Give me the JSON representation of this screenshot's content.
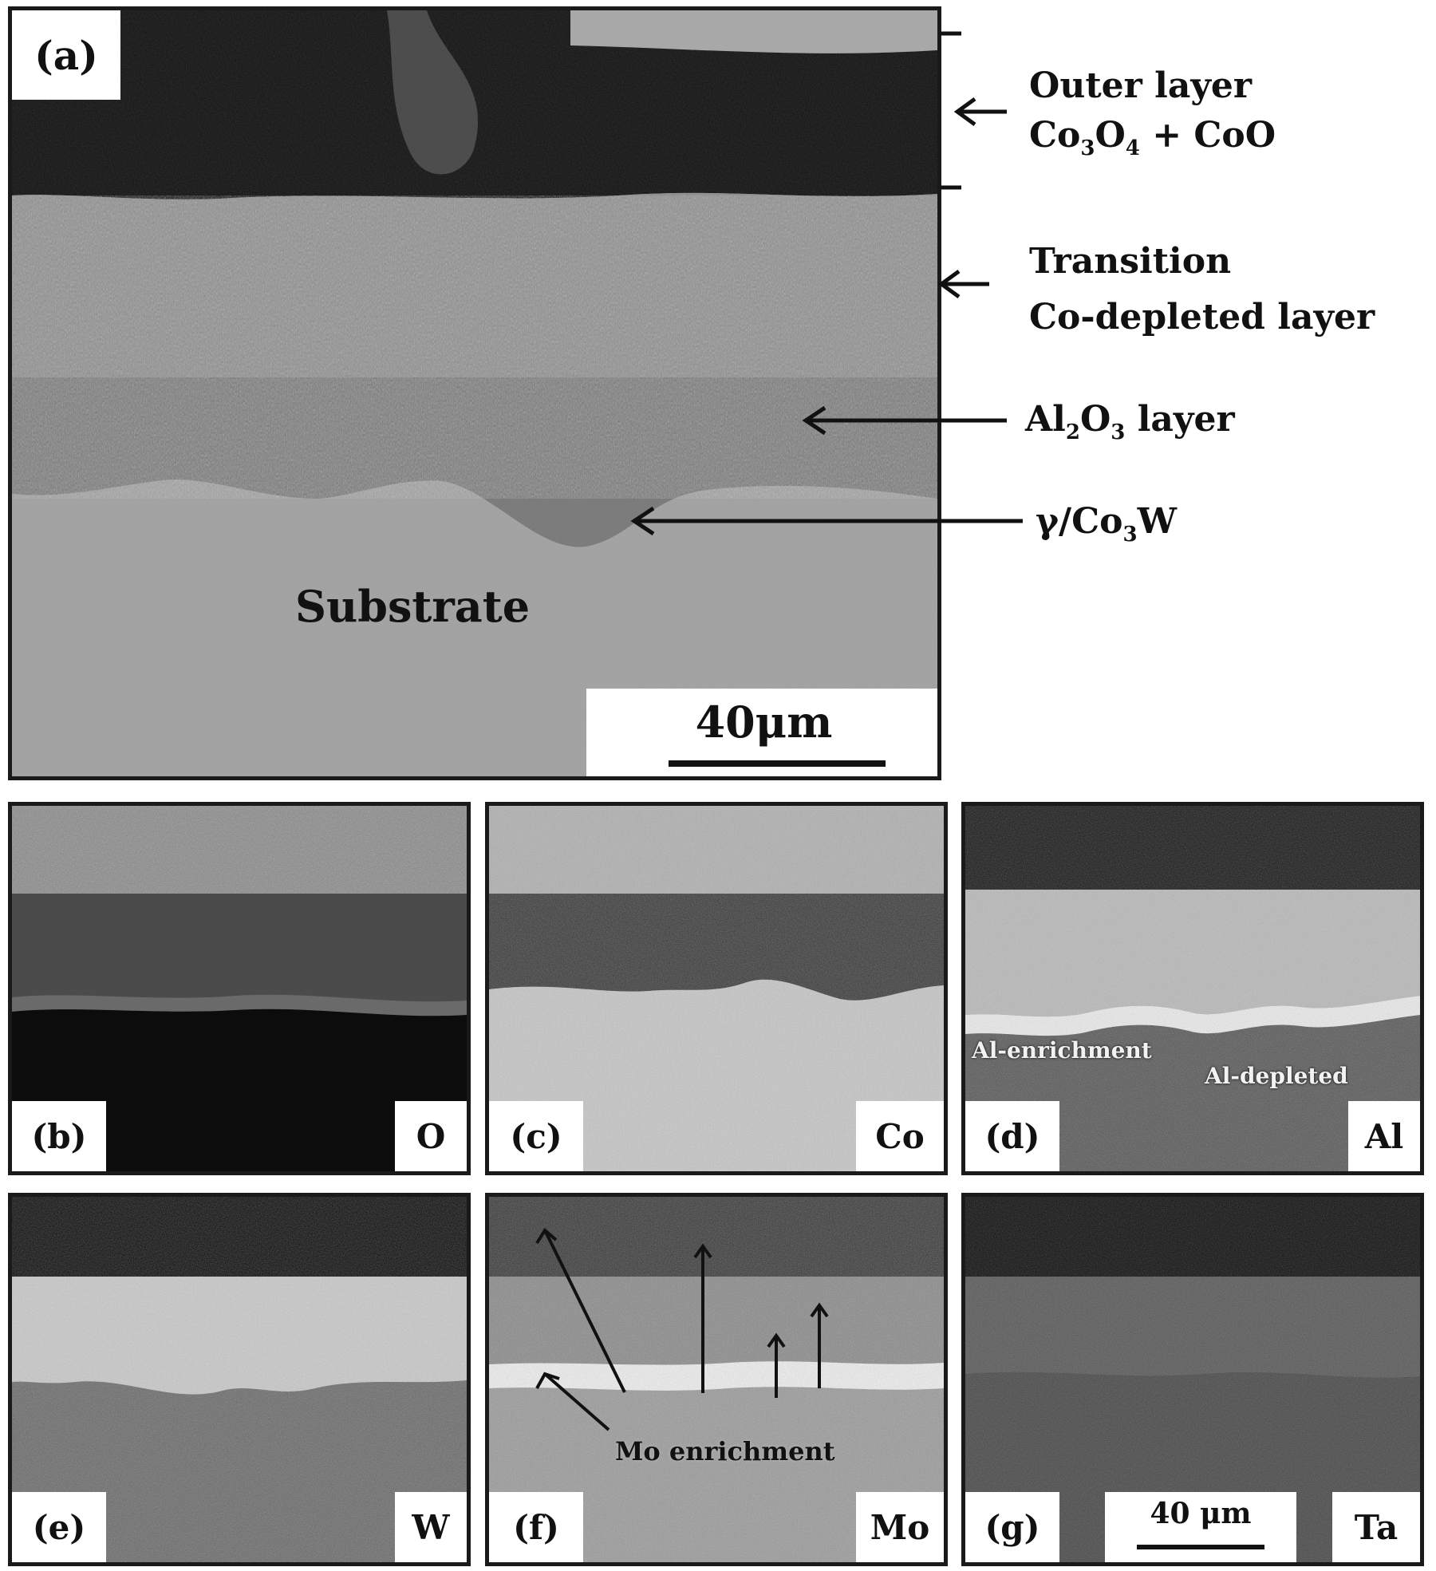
{
  "panel_a": {
    "label": "(a)",
    "substrate_text": "Substrate",
    "scale": "40μm",
    "layers": {
      "outer_title": "Outer layer",
      "outer_comp_parts": [
        "Co",
        "3",
        "O",
        "4",
        " + CoO"
      ],
      "transition": "Transition",
      "co_depleted": "Co-depleted  layer",
      "al2o3_parts": [
        "Al",
        "2",
        "O",
        "3",
        " layer"
      ],
      "gamma_parts": [
        "γ/Co",
        "3",
        "W"
      ]
    }
  },
  "panels": [
    {
      "label": "(b)",
      "element": "O"
    },
    {
      "label": "(c)",
      "element": "Co"
    },
    {
      "label": "(d)",
      "element": "Al",
      "notes": [
        "Al-enrichment",
        "Al-depleted"
      ]
    },
    {
      "label": "(e)",
      "element": "W"
    },
    {
      "label": "(f)",
      "element": "Mo",
      "notes": [
        "Mo enrichment"
      ]
    },
    {
      "label": "(g)",
      "element": "Ta",
      "scale": "40 μm"
    }
  ]
}
